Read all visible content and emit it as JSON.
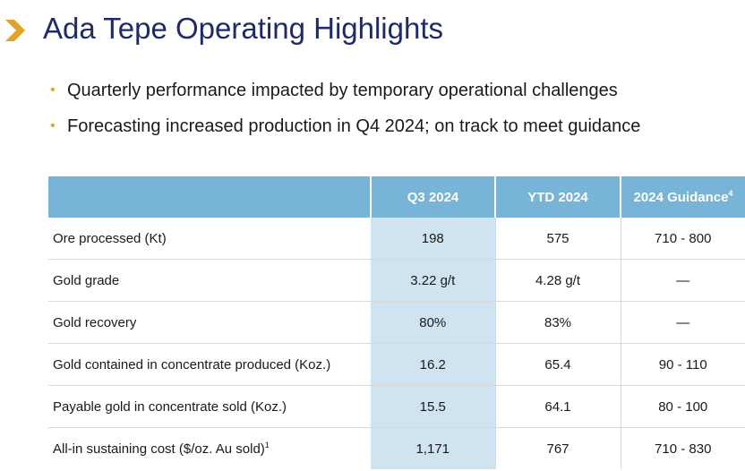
{
  "title": "Ada Tepe Operating Highlights",
  "bullets": [
    "Quarterly performance impacted by temporary operational challenges",
    "Forecasting increased production in Q4 2024; on track to meet guidance"
  ],
  "table": {
    "headers": [
      "",
      "Q3 2024",
      "YTD 2024",
      "2024 Guidance"
    ],
    "guidance_footnote": "4",
    "rows": [
      {
        "label": "Ore processed (Kt)",
        "footnote": "",
        "q3": "198",
        "ytd": "575",
        "guidance": "710 - 800"
      },
      {
        "label": "Gold grade",
        "footnote": "",
        "q3": "3.22 g/t",
        "ytd": "4.28 g/t",
        "guidance": "—"
      },
      {
        "label": "Gold recovery",
        "footnote": "",
        "q3": "80%",
        "ytd": "83%",
        "guidance": "—"
      },
      {
        "label": "Gold contained in concentrate produced (Koz.)",
        "footnote": "",
        "q3": "16.2",
        "ytd": "65.4",
        "guidance": "90 - 110"
      },
      {
        "label": "Payable gold in concentrate sold (Koz.)",
        "footnote": "",
        "q3": "15.5",
        "ytd": "64.1",
        "guidance": "80 - 100"
      },
      {
        "label": "All-in sustaining cost ($/oz. Au sold)",
        "footnote": "1",
        "q3": "1,171",
        "ytd": "767",
        "guidance": "710 - 830"
      }
    ]
  },
  "colors": {
    "title": "#1f2a6b",
    "accent": "#e3a324",
    "header_bg": "#78b4d8",
    "q3_column_bg": "#cfe3f1"
  }
}
